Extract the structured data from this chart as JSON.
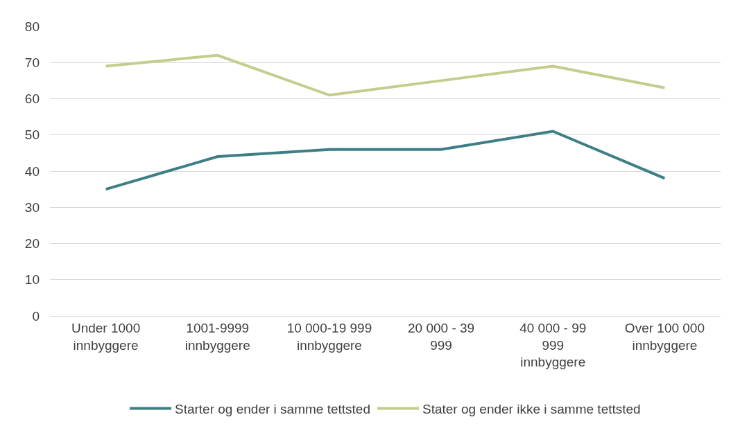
{
  "chart_data": {
    "type": "line",
    "categories": [
      "Under 1000\ninnbyggere",
      "1001-9999\ninnbyggere",
      "10 000-19 999\ninnbyggere",
      "20 000 - 39\n999",
      "40 000 - 99\n999\ninnbyggere",
      "Over 100 000\ninnbyggere"
    ],
    "series": [
      {
        "name": "Starter og ender i samme tettsted",
        "color": "#3d7f85",
        "values": [
          35,
          44,
          46,
          46,
          51,
          38
        ]
      },
      {
        "name": "Stater og ender ikke i samme tettsted",
        "color": "#c5cc8c",
        "values": [
          69,
          72,
          61,
          65,
          69,
          63
        ]
      }
    ],
    "ylim": [
      0,
      80
    ],
    "yticks": [
      0,
      10,
      20,
      30,
      40,
      50,
      60,
      70,
      80
    ],
    "grid": "y",
    "legend": "bottom",
    "marker": "none",
    "line_style": "solid"
  }
}
